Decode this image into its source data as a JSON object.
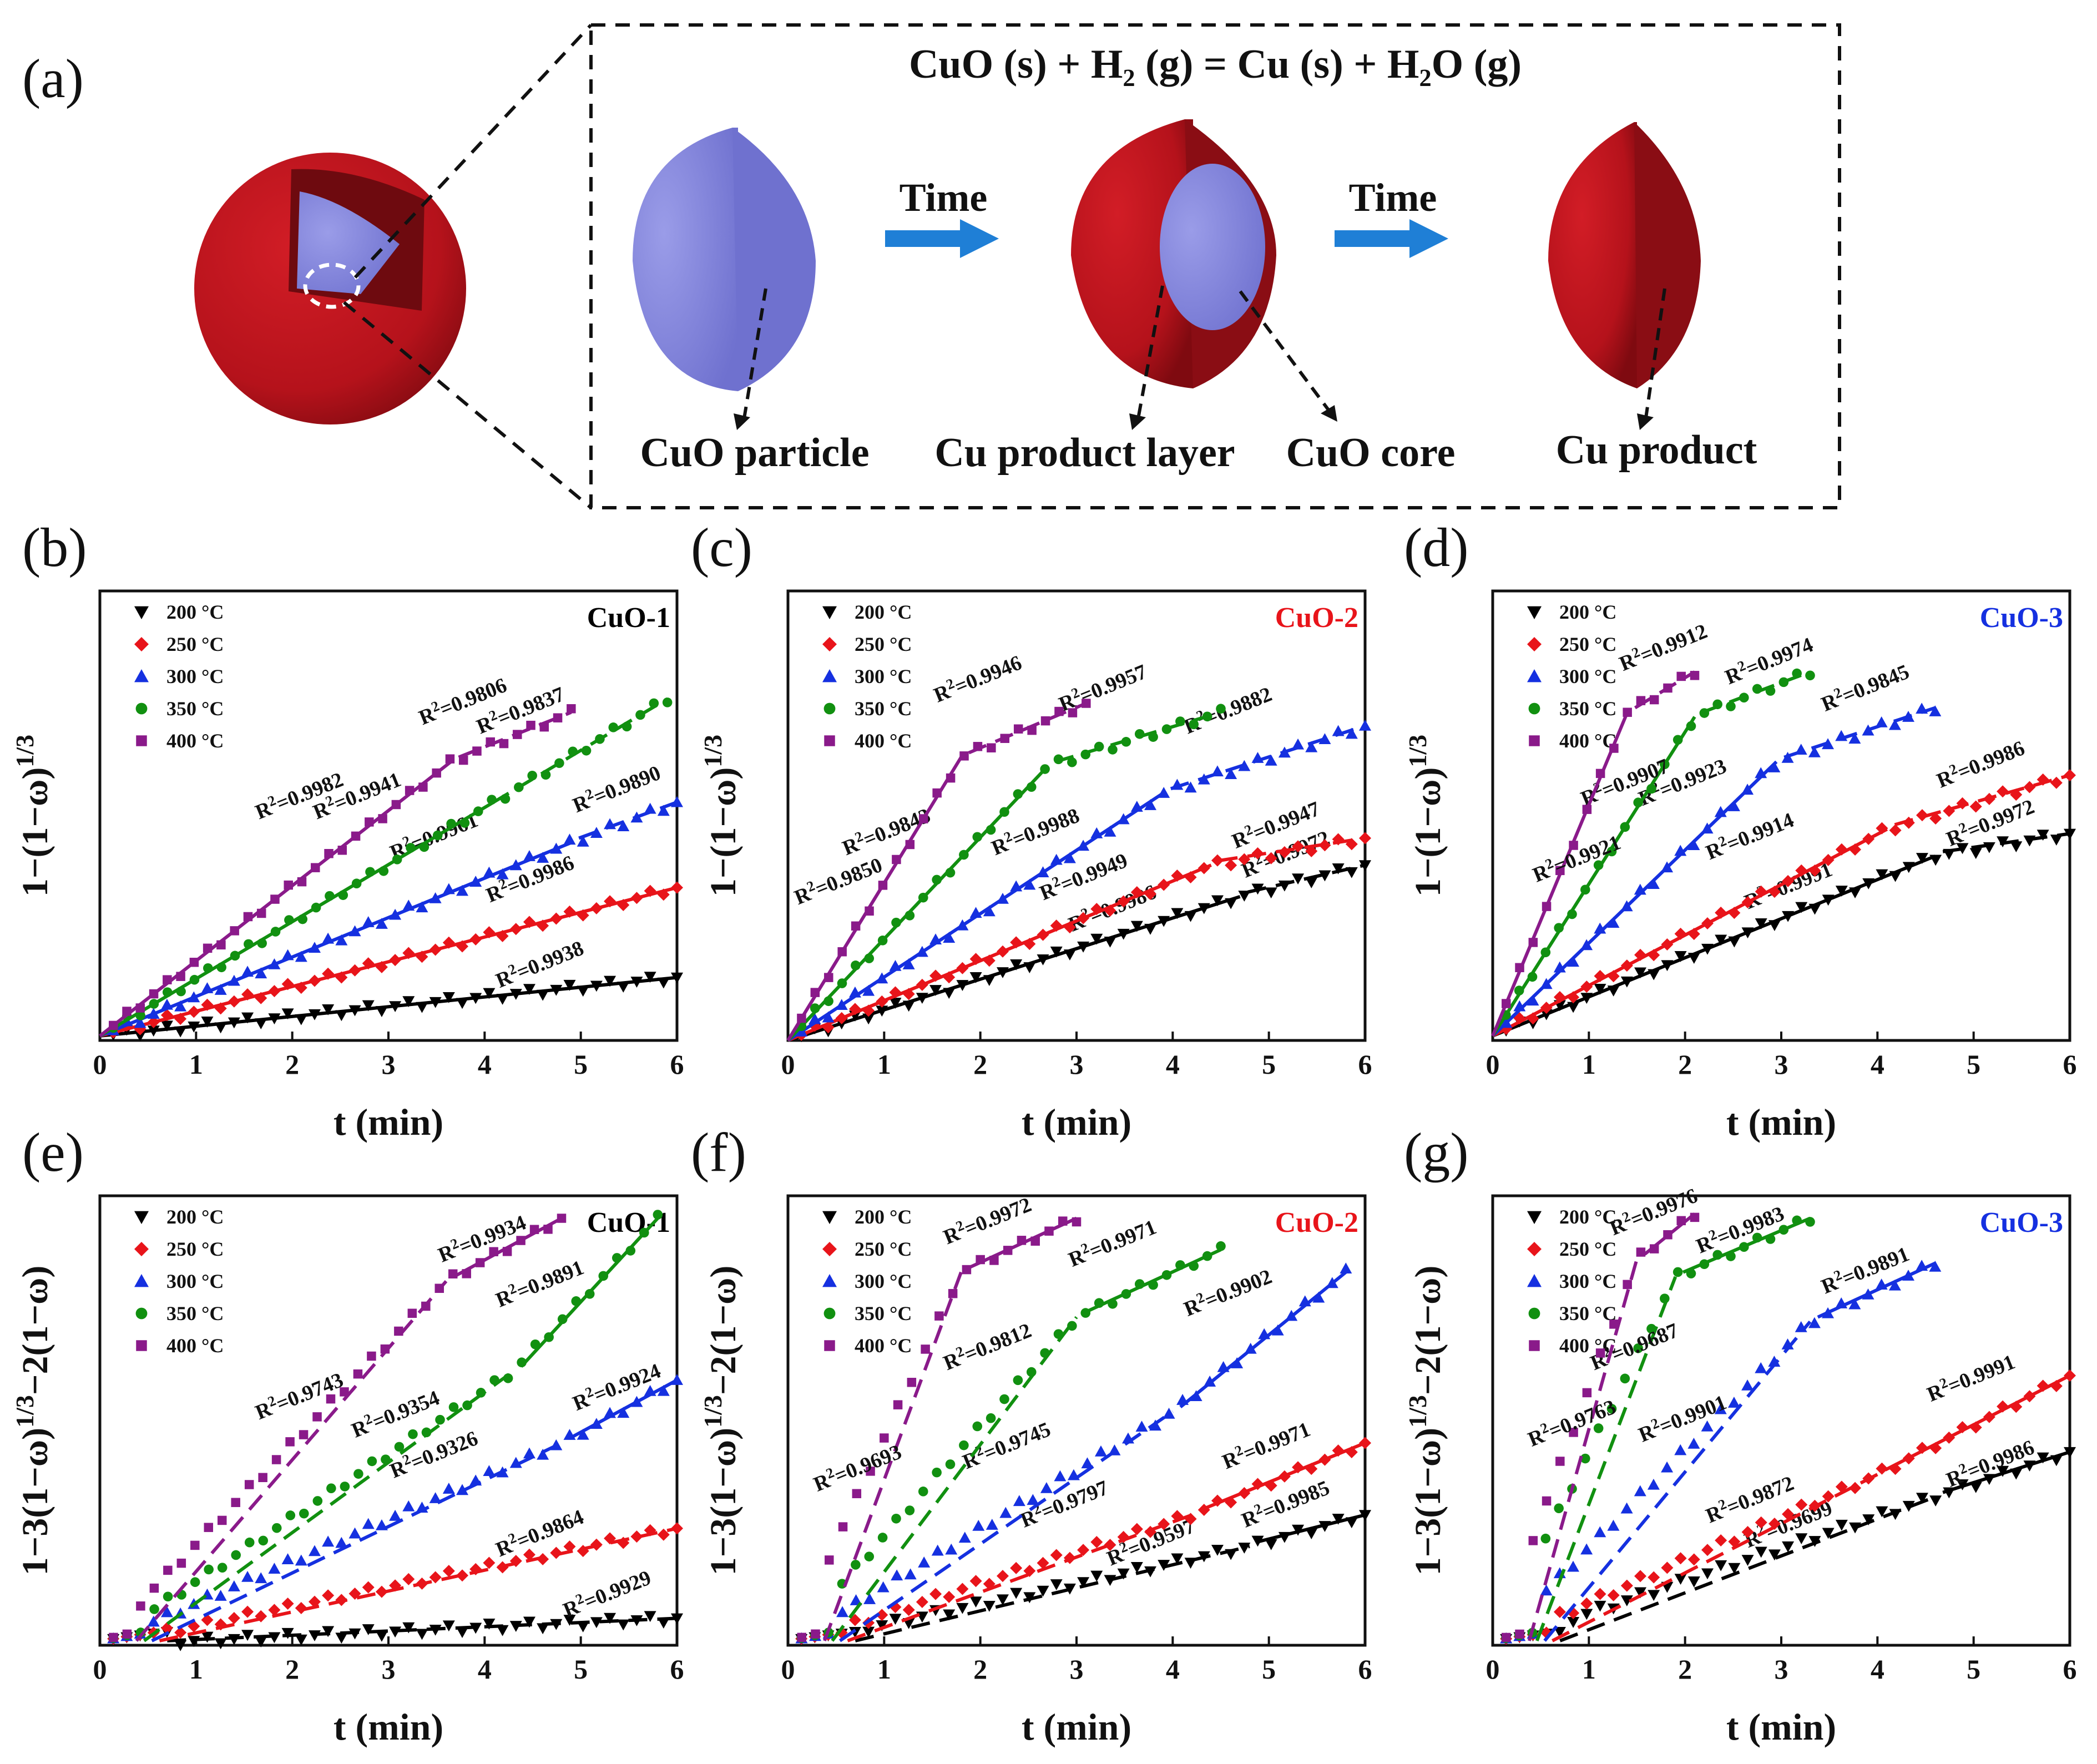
{
  "figure": {
    "panel_a": {
      "label": "(a)",
      "reaction": "CuO (s) + H₂ (g) = Cu (s) + H₂O (g)",
      "arrow_labels": [
        "Time",
        "Time"
      ],
      "captions": {
        "cuo_particle": "CuO particle",
        "cu_product_layer": "Cu product layer",
        "cuo_core": "CuO core",
        "cu_product": "Cu product"
      },
      "colors": {
        "cu": "#b5121b",
        "cu_dark": "#8a0d14",
        "cuo": "#8587dd",
        "arrow": "#1f7fd6"
      }
    }
  },
  "series_names": [
    "200 °C",
    "250 °C",
    "300 °C",
    "350 °C",
    "400 °C"
  ],
  "series_colors": [
    "#000000",
    "#e8141a",
    "#1530e0",
    "#119010",
    "#8a1a8a"
  ],
  "series_markers": [
    "tri-down",
    "diamond",
    "tri-up",
    "circle",
    "square"
  ],
  "chart_data": [
    {
      "id": "b",
      "type": "scatter",
      "panel_label": "(b)",
      "sample": "CuO-1",
      "sample_color": "#000000",
      "ylabel": "1−(1−ω)^1/3",
      "xlabel": "t (min)",
      "xlim": [
        0,
        6
      ],
      "ylim": [
        0,
        1.0
      ],
      "xticks": [
        "0",
        "1",
        "2",
        "3",
        "4",
        "5",
        "6"
      ],
      "series": [
        {
          "name": "200 °C",
          "end": 6,
          "split": 6,
          "y0": 0.01,
          "yb": 0.14,
          "ye": 0.14,
          "fits": [
            {
              "r2": "R²=0.9938",
              "x": 4.6,
              "y": 0.155
            }
          ]
        },
        {
          "name": "250 °C",
          "end": 6,
          "split": 6,
          "y0": 0.01,
          "yb": 0.34,
          "ye": 0.34,
          "fits": [
            {
              "r2": "R²=0.9986",
              "x": 4.5,
              "y": 0.345
            }
          ]
        },
        {
          "name": "300 °C",
          "end": 6,
          "split": 4.9,
          "y0": 0.01,
          "yb": 0.44,
          "ye": 0.53,
          "fits": [
            {
              "r2": "R²=0.9961",
              "x": 3.5,
              "y": 0.44
            },
            {
              "r2": "R²=0.9890",
              "x": 5.4,
              "y": 0.545
            }
          ]
        },
        {
          "name": "350 °C",
          "end": 5.9,
          "split": 4.25,
          "y0": 0.01,
          "yb": 0.55,
          "ye": 0.76,
          "fits": [
            {
              "r2": "R²=0.9941",
              "x": 2.7,
              "y": 0.53
            },
            {
              "r2": "R²=0.9837",
              "x": 4.4,
              "y": 0.72
            }
          ]
        },
        {
          "name": "400 °C",
          "end": 4.9,
          "split": 3.65,
          "y0": 0.01,
          "yb": 0.62,
          "ye": 0.73,
          "fits": [
            {
              "r2": "R²=0.9982",
              "x": 2.1,
              "y": 0.53
            },
            {
              "r2": "R²=0.9806",
              "x": 3.8,
              "y": 0.74
            }
          ]
        }
      ]
    },
    {
      "id": "c",
      "type": "scatter",
      "panel_label": "(c)",
      "sample": "CuO-2",
      "sample_color": "#e8141a",
      "ylabel": "1−(1−ω)^1/3",
      "xlabel": "t (min)",
      "xlim": [
        0,
        6
      ],
      "ylim": [
        0,
        1.0
      ],
      "xticks": [
        "0",
        "1",
        "2",
        "3",
        "4",
        "5",
        "6"
      ],
      "series": [
        {
          "name": "200 °C",
          "end": 6,
          "split": 4.7,
          "y0": 0.0,
          "yb": 0.32,
          "ye": 0.39,
          "fits": [
            {
              "r2": "R²=0.9986",
              "x": 3.4,
              "y": 0.28
            },
            {
              "r2": "R²=0.9972",
              "x": 5.2,
              "y": 0.4
            }
          ]
        },
        {
          "name": "250 °C",
          "end": 6,
          "split": 4.4,
          "y0": 0.0,
          "yb": 0.39,
          "ye": 0.45,
          "fits": [
            {
              "r2": "R²=0.9949",
              "x": 3.1,
              "y": 0.35
            },
            {
              "r2": "R²=0.9947",
              "x": 5.1,
              "y": 0.465
            }
          ]
        },
        {
          "name": "300 °C",
          "end": 6,
          "split": 3.9,
          "y0": 0.0,
          "yb": 0.55,
          "ye": 0.7,
          "fits": [
            {
              "r2": "R²=0.9988",
              "x": 2.6,
              "y": 0.45
            },
            {
              "r2": "R²=0.9882",
              "x": 4.6,
              "y": 0.72
            }
          ]
        },
        {
          "name": "350 °C",
          "end": 4.5,
          "split": 2.7,
          "y0": 0.0,
          "yb": 0.61,
          "ye": 0.73,
          "fits": [
            {
              "r2": "R²=0.9843",
              "x": 1.05,
              "y": 0.45
            },
            {
              "r2": "R²=0.9957",
              "x": 3.3,
              "y": 0.77
            }
          ]
        },
        {
          "name": "400 °C",
          "end": 3.1,
          "split": 1.8,
          "y0": 0.0,
          "yb": 0.63,
          "ye": 0.75,
          "fits": [
            {
              "r2": "R²=0.9850",
              "x": 0.55,
              "y": 0.34
            },
            {
              "r2": "R²=0.9946",
              "x": 2.0,
              "y": 0.79
            }
          ]
        }
      ]
    },
    {
      "id": "d",
      "type": "scatter",
      "panel_label": "(d)",
      "sample": "CuO-3",
      "sample_color": "#1530e0",
      "ylabel": "1−(1−ω)^1/3",
      "xlabel": "t (min)",
      "xlim": [
        0,
        6
      ],
      "ylim": [
        0,
        1.0
      ],
      "xticks": [
        "0",
        "1",
        "2",
        "3",
        "4",
        "5",
        "6"
      ],
      "series": [
        {
          "name": "200 °C",
          "end": 6,
          "split": 4.6,
          "y0": 0.01,
          "yb": 0.41,
          "ye": 0.46,
          "fits": [
            {
              "r2": "R²=0.9991",
              "x": 3.1,
              "y": 0.33
            },
            {
              "r2": "R²=0.9972",
              "x": 5.2,
              "y": 0.47
            }
          ]
        },
        {
          "name": "250 °C",
          "end": 6,
          "split": 4.1,
          "y0": 0.01,
          "yb": 0.47,
          "ye": 0.59,
          "fits": [
            {
              "r2": "R²=0.9914",
              "x": 2.7,
              "y": 0.44
            },
            {
              "r2": "R²=0.9986",
              "x": 5.1,
              "y": 0.6
            }
          ]
        },
        {
          "name": "300 °C",
          "end": 4.6,
          "split": 2.95,
          "y0": 0.01,
          "yb": 0.62,
          "ye": 0.74,
          "fits": [
            {
              "r2": "R²=0.9923",
              "x": 2.0,
              "y": 0.56
            },
            {
              "r2": "R²=0.9845",
              "x": 3.9,
              "y": 0.77
            }
          ]
        },
        {
          "name": "350 °C",
          "end": 3.3,
          "split": 2.1,
          "y0": 0.01,
          "yb": 0.72,
          "ye": 0.82,
          "fits": [
            {
              "r2": "R²=0.9907",
              "x": 1.4,
              "y": 0.56
            },
            {
              "r2": "R²=0.9974",
              "x": 2.9,
              "y": 0.83
            }
          ]
        },
        {
          "name": "400 °C",
          "end": 2.1,
          "split": 1.4,
          "y0": 0.01,
          "yb": 0.73,
          "ye": 0.82,
          "fits": [
            {
              "r2": "R²=0.9921",
              "x": 0.9,
              "y": 0.39
            },
            {
              "r2": "R²=0.9912",
              "x": 1.8,
              "y": 0.86
            }
          ]
        }
      ]
    },
    {
      "id": "e",
      "type": "scatter",
      "panel_label": "(e)",
      "sample": "CuO-1",
      "sample_color": "#000000",
      "ylabel": "1−3(1−ω)^1/3−2(1−ω)",
      "xlabel": "t (min)",
      "xlim": [
        0,
        6
      ],
      "ylim": [
        0,
        1.0
      ],
      "xticks": [
        "0",
        "1",
        "2",
        "3",
        "4",
        "5",
        "6"
      ],
      "series": [
        {
          "name": "200 °C",
          "end": 6,
          "split": 6,
          "y0": 0.0,
          "yb": 0.06,
          "ye": 0.06,
          "fits": [
            {
              "r2": "R²=0.9929",
              "x": 5.3,
              "y": 0.1
            }
          ]
        },
        {
          "name": "250 °C",
          "end": 6,
          "split": 6,
          "y0": 0.0,
          "yb": 0.26,
          "ye": 0.26,
          "fits": [
            {
              "r2": "R²=0.9864",
              "x": 4.6,
              "y": 0.235
            }
          ]
        },
        {
          "name": "300 °C",
          "end": 6,
          "split": 4.8,
          "y0": 0.0,
          "yb": 0.45,
          "ye": 0.59,
          "fits": [
            {
              "r2": "R²=0.9326",
              "x": 3.5,
              "y": 0.41
            },
            {
              "r2": "R²=0.9924",
              "x": 5.4,
              "y": 0.56
            }
          ]
        },
        {
          "name": "350 °C",
          "end": 5.8,
          "split": 4.3,
          "y0": 0.0,
          "yb": 0.61,
          "ye": 0.95,
          "fits": [
            {
              "r2": "R²=0.9354",
              "x": 3.1,
              "y": 0.5
            },
            {
              "r2": "R²=0.9891",
              "x": 4.6,
              "y": 0.79
            }
          ]
        },
        {
          "name": "400 °C",
          "end": 4.8,
          "split": 3.6,
          "y0": 0.0,
          "yb": 0.81,
          "ye": 0.95,
          "fits": [
            {
              "r2": "R²=0.9743",
              "x": 2.1,
              "y": 0.54
            },
            {
              "r2": "R²=0.9934",
              "x": 4.0,
              "y": 0.89
            }
          ]
        }
      ]
    },
    {
      "id": "f",
      "type": "scatter",
      "panel_label": "(f)",
      "sample": "CuO-2",
      "sample_color": "#e8141a",
      "ylabel": "1−3(1−ω)^1/3−2(1−ω)",
      "xlabel": "t (min)",
      "xlim": [
        0,
        6
      ],
      "ylim": [
        0,
        1.0
      ],
      "xticks": [
        "0",
        "1",
        "2",
        "3",
        "4",
        "5",
        "6"
      ],
      "series": [
        {
          "name": "200 °C",
          "end": 6,
          "split": 4.8,
          "y0": 0.0,
          "yb": 0.22,
          "ye": 0.29,
          "fits": [
            {
              "r2": "R²=0.9597",
              "x": 3.8,
              "y": 0.215
            },
            {
              "r2": "R²=0.9985",
              "x": 5.2,
              "y": 0.3
            }
          ]
        },
        {
          "name": "250 °C",
          "end": 6,
          "split": 4.2,
          "y0": 0.0,
          "yb": 0.29,
          "ye": 0.45,
          "fits": [
            {
              "r2": "R²=0.9797",
              "x": 2.9,
              "y": 0.3
            },
            {
              "r2": "R²=0.9971",
              "x": 5.0,
              "y": 0.43
            }
          ]
        },
        {
          "name": "300 °C",
          "end": 5.8,
          "split": 4.0,
          "y0": 0.0,
          "yb": 0.52,
          "ye": 0.83,
          "fits": [
            {
              "r2": "R²=0.9745",
              "x": 2.3,
              "y": 0.43
            },
            {
              "r2": "R²=0.9902",
              "x": 4.6,
              "y": 0.77
            }
          ]
        },
        {
          "name": "350 °C",
          "end": 4.5,
          "split": 3.0,
          "y0": 0.0,
          "yb": 0.73,
          "ye": 0.88,
          "fits": [
            {
              "r2": "R²=0.9812",
              "x": 2.1,
              "y": 0.65
            },
            {
              "r2": "R²=0.9971",
              "x": 3.4,
              "y": 0.88
            }
          ]
        },
        {
          "name": "400 °C",
          "end": 3.0,
          "split": 1.8,
          "y0": 0.0,
          "yb": 0.83,
          "ye": 0.95,
          "fits": [
            {
              "r2": "R²=0.9693",
              "x": 0.75,
              "y": 0.38
            },
            {
              "r2": "R²=0.9972",
              "x": 2.1,
              "y": 0.93
            }
          ]
        }
      ]
    },
    {
      "id": "g",
      "type": "scatter",
      "panel_label": "(g)",
      "sample": "CuO-3",
      "sample_color": "#1530e0",
      "ylabel": "1−3(1−ω)^1/3−2(1−ω)",
      "xlabel": "t (min)",
      "xlim": [
        0,
        6
      ],
      "ylim": [
        0,
        1.0
      ],
      "xticks": [
        "0",
        "1",
        "2",
        "3",
        "4",
        "5",
        "6"
      ],
      "series": [
        {
          "name": "200 °C",
          "end": 6,
          "split": 4.6,
          "y0": 0.0,
          "yb": 0.33,
          "ye": 0.43,
          "fits": [
            {
              "r2": "R²=0.9699",
              "x": 3.1,
              "y": 0.255
            },
            {
              "r2": "R²=0.9986",
              "x": 5.2,
              "y": 0.39
            }
          ]
        },
        {
          "name": "250 °C",
          "end": 6,
          "split": 4.0,
          "y0": 0.0,
          "yb": 0.38,
          "ye": 0.6,
          "fits": [
            {
              "r2": "R²=0.9872",
              "x": 2.7,
              "y": 0.31
            },
            {
              "r2": "R²=0.9991",
              "x": 5.0,
              "y": 0.58
            }
          ]
        },
        {
          "name": "300 °C",
          "end": 4.6,
          "split": 3.3,
          "y0": 0.0,
          "yb": 0.72,
          "ye": 0.85,
          "fits": [
            {
              "r2": "R²=0.9901",
              "x": 2.0,
              "y": 0.49
            },
            {
              "r2": "R²=0.9891",
              "x": 3.9,
              "y": 0.82
            }
          ]
        },
        {
          "name": "350 °C",
          "end": 3.3,
          "split": 1.9,
          "y0": 0.0,
          "yb": 0.82,
          "ye": 0.95,
          "fits": [
            {
              "r2": "R²=0.9687",
              "x": 1.5,
              "y": 0.65
            },
            {
              "r2": "R²=0.9983",
              "x": 2.6,
              "y": 0.91
            }
          ]
        },
        {
          "name": "400 °C",
          "end": 2.1,
          "split": 1.5,
          "y0": 0.0,
          "yb": 0.86,
          "ye": 0.96,
          "fits": [
            {
              "r2": "R²=0.9763",
              "x": 0.85,
              "y": 0.48
            },
            {
              "r2": "R²=0.9976",
              "x": 1.7,
              "y": 0.95
            }
          ]
        }
      ]
    }
  ]
}
